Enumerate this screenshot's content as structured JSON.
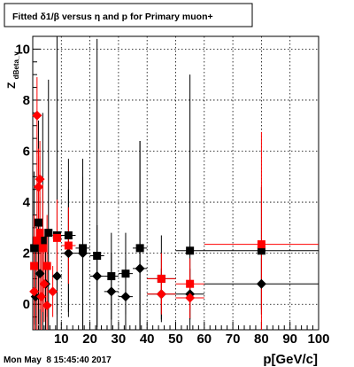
{
  "title": "Fitted δ1/β versus η and p for Primary muon+",
  "footer_timestamp": "Mon May  8 15:45:40 2017",
  "chart_data": {
    "type": "scatter",
    "title": "Fitted δ1/β versus η and p for Primary muon+",
    "xlabel": "p[GeV/c]",
    "ylabel": "Z_dBeta_v",
    "ylabel_main": "Z",
    "ylabel_sub": "dBeta_v",
    "xlim": [
      0,
      100
    ],
    "ylim": [
      -1,
      10.5
    ],
    "grid": true,
    "x_ticks": [
      10,
      20,
      30,
      40,
      50,
      60,
      70,
      80,
      90,
      100
    ],
    "y_ticks": [
      0,
      2,
      4,
      6,
      8,
      10
    ],
    "series": [
      {
        "marker": "square",
        "color": "#000000",
        "points": [
          {
            "x": 0.5,
            "y": 2.2,
            "ex": 0.5,
            "ey": 3.0
          },
          {
            "x": 2.0,
            "y": 3.2,
            "ex": 0.5,
            "ey": 4.0
          },
          {
            "x": 3.5,
            "y": 2.5,
            "ex": 0.5,
            "ey": 5.0
          },
          {
            "x": 5.5,
            "y": 2.8,
            "ex": 1.0,
            "ey": 6.0
          },
          {
            "x": 8.5,
            "y": 2.7,
            "ex": 1.5,
            "ey": 9.0
          },
          {
            "x": 12.5,
            "y": 2.7,
            "ex": 2.5,
            "ey": 3.0
          },
          {
            "x": 17.5,
            "y": 2.2,
            "ex": 2.5,
            "ey": 3.5
          },
          {
            "x": 22.5,
            "y": 1.9,
            "ex": 2.5,
            "ey": 8.5
          },
          {
            "x": 27.5,
            "y": 1.1,
            "ex": 2.5,
            "ey": 1.7
          },
          {
            "x": 32.5,
            "y": 1.2,
            "ex": 2.5,
            "ey": 1.6
          },
          {
            "x": 37.5,
            "y": 2.2,
            "ex": 2.5,
            "ey": 4.2
          },
          {
            "x": 45.0,
            "y": 1.0,
            "ex": 5.0,
            "ey": 1.7
          },
          {
            "x": 55.0,
            "y": 2.1,
            "ex": 5.0,
            "ey": 6.9
          },
          {
            "x": 80.0,
            "y": 2.1,
            "ex": 20.0,
            "ey": 2.5
          }
        ]
      },
      {
        "marker": "diamond",
        "color": "#000000",
        "points": [
          {
            "x": 1.0,
            "y": 0.3,
            "ex": 0.5,
            "ey": 2.0
          },
          {
            "x": 2.5,
            "y": 1.2,
            "ex": 0.5,
            "ey": 3.0
          },
          {
            "x": 4.5,
            "y": 0.8,
            "ex": 0.5,
            "ey": 2.0
          },
          {
            "x": 8.5,
            "y": 1.1,
            "ex": 1.5,
            "ey": 1.5
          },
          {
            "x": 12.5,
            "y": 2.0,
            "ex": 2.5,
            "ey": 2.5
          },
          {
            "x": 17.5,
            "y": 2.0,
            "ex": 2.5,
            "ey": 3.0
          },
          {
            "x": 22.5,
            "y": 1.1,
            "ex": 2.5,
            "ey": 2.0
          },
          {
            "x": 27.5,
            "y": 0.5,
            "ex": 2.5,
            "ey": 1.5
          },
          {
            "x": 32.5,
            "y": 0.3,
            "ex": 2.5,
            "ey": 1.5
          },
          {
            "x": 37.5,
            "y": 1.4,
            "ex": 2.5,
            "ey": 5.0
          },
          {
            "x": 45.0,
            "y": 0.4,
            "ex": 5.0,
            "ey": 1.0
          },
          {
            "x": 55.0,
            "y": 0.4,
            "ex": 5.0,
            "ey": 1.0
          },
          {
            "x": 80.0,
            "y": 0.8,
            "ex": 20.0,
            "ey": 1.0
          }
        ]
      },
      {
        "marker": "square",
        "color": "#ff0000",
        "points": [
          {
            "x": 0.5,
            "y": 1.5,
            "ex": 0.5,
            "ey": 2.0
          },
          {
            "x": 1.5,
            "y": 2.5,
            "ex": 0.5,
            "ey": 3.5
          },
          {
            "x": 2.5,
            "y": 2.8,
            "ex": 0.5,
            "ey": 3.0
          },
          {
            "x": 3.5,
            "y": 2.2,
            "ex": 0.5,
            "ey": 2.5
          },
          {
            "x": 5.0,
            "y": 1.5,
            "ex": 0.5,
            "ey": 2.0
          },
          {
            "x": 8.5,
            "y": 2.6,
            "ex": 1.5,
            "ey": 1.5
          },
          {
            "x": 12.5,
            "y": 2.3,
            "ex": 2.5,
            "ey": 1.5
          },
          {
            "x": 45.0,
            "y": 1.0,
            "ex": 5.0,
            "ey": 1.0
          },
          {
            "x": 55.0,
            "y": 0.8,
            "ex": 5.0,
            "ey": 1.0
          },
          {
            "x": 80.0,
            "y": 2.35,
            "ex": 20.0,
            "ey": 4.4
          }
        ]
      },
      {
        "marker": "diamond",
        "color": "#ff0000",
        "points": [
          {
            "x": 0.5,
            "y": 0.5,
            "ex": 0.5,
            "ey": 1.5
          },
          {
            "x": 1.5,
            "y": 7.4,
            "ex": 0.5,
            "ey": 1.5
          },
          {
            "x": 2.0,
            "y": 4.6,
            "ex": 0.5,
            "ey": 1.5
          },
          {
            "x": 2.5,
            "y": 4.9,
            "ex": 0.5,
            "ey": 1.5
          },
          {
            "x": 3.0,
            "y": 0.3,
            "ex": 0.5,
            "ey": 2.0
          },
          {
            "x": 4.0,
            "y": 0.8,
            "ex": 0.5,
            "ey": 1.5
          },
          {
            "x": 5.0,
            "y": -0.05,
            "ex": 0.5,
            "ey": 1.5
          },
          {
            "x": 7.0,
            "y": 0.5,
            "ex": 0.5,
            "ey": 1.0
          },
          {
            "x": 45.0,
            "y": 0.4,
            "ex": 5.0,
            "ey": 0.8
          },
          {
            "x": 55.0,
            "y": 0.25,
            "ex": 5.0,
            "ey": 0.8
          }
        ]
      }
    ]
  }
}
